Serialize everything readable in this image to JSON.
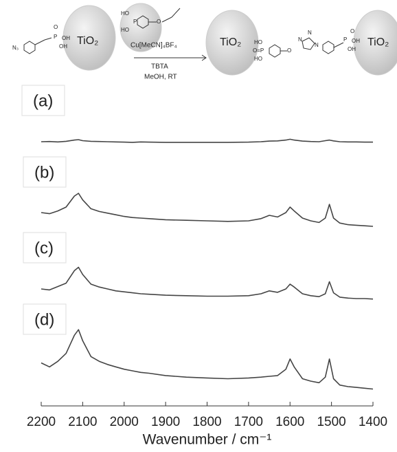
{
  "scheme": {
    "left_azide": "N₃",
    "left_p": "P",
    "left_o": "O",
    "left_oh1": "OH",
    "left_oh2": "OH",
    "tio2_left": "TiO₂",
    "reagent_p": "P",
    "reagent_ho1": "HO",
    "reagent_ho2": "HO",
    "reagent_o": "O",
    "catalyst": "Cu[MeCN]₄BF₄",
    "ligand": "TBTA",
    "conditions": "MeOH, RT",
    "tio2_mid": "TiO₂",
    "prod_ho1": "HO",
    "prod_op": "O=P",
    "prod_ho2": "HO",
    "prod_o": "O",
    "triazole_n": "N",
    "triazole_n2": "N",
    "triazole_n1": "N",
    "prod_p": "P",
    "prod_o2": "O",
    "prod_oh1": "OH",
    "prod_oh2": "OH",
    "tio2_right": "TiO₂"
  },
  "chart_data": [
    {
      "type": "line",
      "label": "(a)",
      "color": "#444",
      "xlim": [
        2200,
        1400
      ],
      "ylim": [
        0,
        100
      ],
      "x": [
        2200,
        2180,
        2160,
        2140,
        2120,
        2110,
        2100,
        2080,
        2060,
        2040,
        2020,
        2000,
        1980,
        1960,
        1940,
        1900,
        1850,
        1800,
        1750,
        1700,
        1670,
        1650,
        1630,
        1610,
        1600,
        1590,
        1570,
        1550,
        1530,
        1515,
        1505,
        1495,
        1480,
        1460,
        1440,
        1420,
        1400
      ],
      "values": [
        30,
        31,
        29,
        32,
        38,
        40,
        35,
        32,
        31,
        30,
        29,
        28,
        27,
        29,
        28,
        27,
        27,
        27,
        27,
        28,
        30,
        33,
        34,
        38,
        42,
        38,
        33,
        31,
        30,
        35,
        38,
        34,
        30,
        29,
        29,
        28,
        28
      ]
    },
    {
      "type": "line",
      "label": "(b)",
      "color": "#444",
      "xlim": [
        2200,
        1400
      ],
      "ylim": [
        0,
        100
      ],
      "x": [
        2200,
        2180,
        2160,
        2140,
        2120,
        2110,
        2100,
        2080,
        2060,
        2040,
        2020,
        2000,
        1980,
        1960,
        1940,
        1900,
        1850,
        1800,
        1750,
        1700,
        1670,
        1650,
        1630,
        1610,
        1600,
        1590,
        1570,
        1550,
        1530,
        1515,
        1505,
        1495,
        1480,
        1460,
        1440,
        1420,
        1400
      ],
      "values": [
        45,
        43,
        48,
        55,
        75,
        80,
        68,
        52,
        47,
        44,
        41,
        38,
        36,
        35,
        34,
        32,
        31,
        30,
        29,
        30,
        34,
        40,
        37,
        45,
        55,
        48,
        35,
        30,
        27,
        35,
        60,
        35,
        26,
        23,
        22,
        21,
        20
      ]
    },
    {
      "type": "line",
      "label": "(c)",
      "color": "#444",
      "xlim": [
        2200,
        1400
      ],
      "ylim": [
        0,
        100
      ],
      "x": [
        2200,
        2180,
        2160,
        2140,
        2120,
        2110,
        2100,
        2080,
        2060,
        2040,
        2020,
        2000,
        1980,
        1960,
        1940,
        1900,
        1850,
        1800,
        1750,
        1700,
        1670,
        1650,
        1630,
        1610,
        1600,
        1590,
        1570,
        1550,
        1530,
        1515,
        1505,
        1495,
        1480,
        1460,
        1440,
        1420,
        1400
      ],
      "values": [
        40,
        38,
        45,
        52,
        78,
        85,
        70,
        50,
        44,
        40,
        36,
        34,
        32,
        30,
        29,
        27,
        26,
        25,
        25,
        26,
        30,
        36,
        33,
        40,
        50,
        44,
        30,
        26,
        24,
        30,
        55,
        32,
        23,
        21,
        20,
        20,
        19
      ]
    },
    {
      "type": "line",
      "label": "(d)",
      "color": "#444",
      "xlim": [
        2200,
        1400
      ],
      "ylim": [
        0,
        100
      ],
      "x": [
        2200,
        2180,
        2160,
        2140,
        2120,
        2110,
        2100,
        2080,
        2060,
        2040,
        2020,
        2000,
        1980,
        1960,
        1940,
        1900,
        1850,
        1800,
        1750,
        1700,
        1670,
        1650,
        1630,
        1610,
        1600,
        1590,
        1570,
        1550,
        1530,
        1515,
        1505,
        1495,
        1480,
        1460,
        1440,
        1420,
        1400
      ],
      "values": [
        50,
        45,
        52,
        62,
        85,
        92,
        78,
        58,
        52,
        48,
        45,
        42,
        40,
        38,
        37,
        34,
        32,
        31,
        30,
        31,
        32,
        33,
        34,
        42,
        55,
        45,
        30,
        27,
        25,
        32,
        55,
        30,
        22,
        20,
        19,
        18,
        17
      ],
      "xticks": [
        2200,
        2100,
        2000,
        1900,
        1800,
        1700,
        1600,
        1500,
        1400
      ],
      "xlabel": "Wavenumber / cm⁻¹"
    }
  ]
}
